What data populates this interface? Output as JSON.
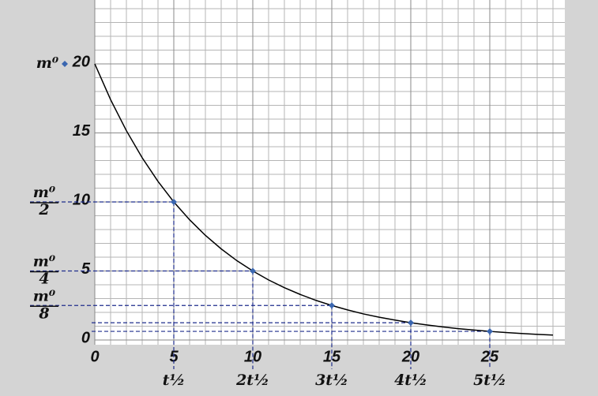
{
  "chart_data": {
    "type": "line",
    "x": [
      0,
      1,
      2,
      3,
      4,
      5,
      6,
      7,
      8,
      9,
      10,
      11,
      12,
      13,
      14,
      15,
      16,
      17,
      18,
      19,
      20,
      21,
      22,
      23,
      24,
      25,
      26,
      27,
      28,
      29
    ],
    "series": [
      {
        "color": "#000000",
        "values": [
          20,
          17.41,
          15.16,
          13.2,
          11.49,
          10,
          8.71,
          7.58,
          6.6,
          5.74,
          5,
          4.35,
          3.79,
          3.3,
          2.87,
          2.5,
          2.18,
          1.89,
          1.65,
          1.44,
          1.25,
          1.09,
          0.95,
          0.82,
          0.72,
          0.625,
          0.54,
          0.47,
          0.41,
          0.36
        ]
      }
    ],
    "points": {
      "color": "#3a66b0",
      "x": [
        5,
        10,
        15,
        20,
        25
      ],
      "values": [
        10,
        5,
        2.5,
        1.25,
        0.625
      ]
    },
    "guide_color": "#1f2d8c",
    "xlim": [
      0,
      29.75
    ],
    "ylim": [
      0,
      24.5
    ],
    "xticks": [
      0,
      5,
      10,
      15,
      20,
      25
    ],
    "yticks": [
      0,
      5,
      10,
      15,
      20
    ],
    "grid": true,
    "x_annotations": [
      {
        "x": 5,
        "text": "t½"
      },
      {
        "x": 10,
        "text": "2t½"
      },
      {
        "x": 15,
        "text": "3t½"
      },
      {
        "x": 20,
        "text": "4t½"
      },
      {
        "x": 25,
        "text": "5t½"
      }
    ],
    "y_annotations": [
      {
        "y": 20,
        "text": "m⁰"
      },
      {
        "y": 10,
        "numerator": "m⁰",
        "denominator": "2"
      },
      {
        "y": 5,
        "numerator": "m⁰",
        "denominator": "4"
      },
      {
        "y": 2.5,
        "numerator": "m⁰",
        "denominator": "8"
      }
    ]
  }
}
